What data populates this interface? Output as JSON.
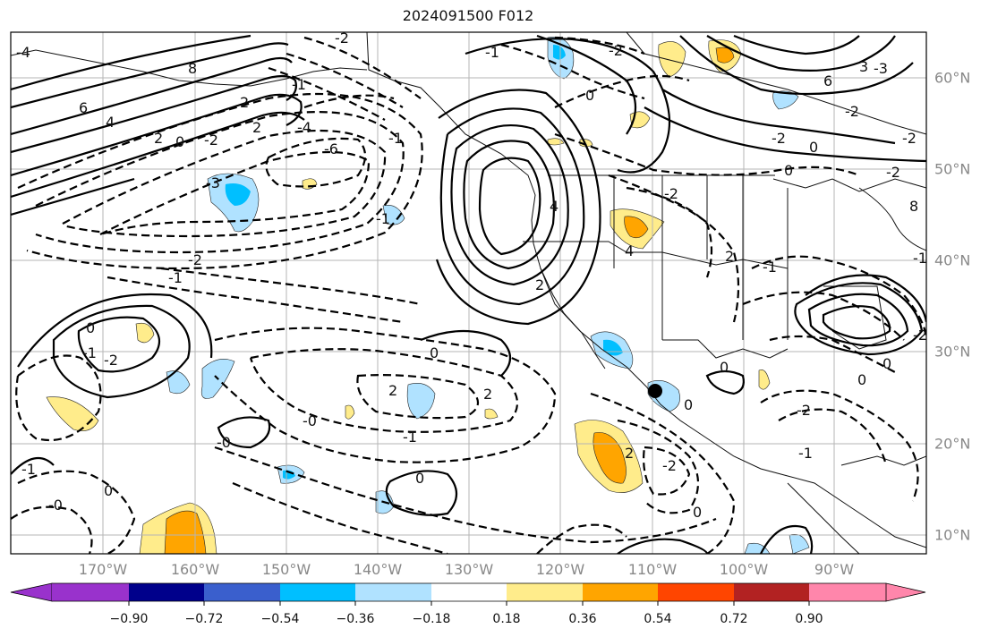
{
  "title": "2024091500 F012",
  "lon_labels": [
    "170°W",
    "160°W",
    "150°W",
    "140°W",
    "130°W",
    "120°W",
    "110°W",
    "100°W",
    "90°W"
  ],
  "lat_labels": [
    "60°N",
    "50°N",
    "40°N",
    "30°N",
    "20°N",
    "10°N"
  ],
  "colorbar": {
    "ticks": [
      "−0.90",
      "−0.72",
      "−0.54",
      "−0.36",
      "−0.18",
      "0.18",
      "0.36",
      "0.54",
      "0.72",
      "0.90"
    ],
    "colors": [
      "#9932cc",
      "#00008b",
      "#3a5fcd",
      "#00bfff",
      "#b0e2ff",
      "#ffffff",
      "#ffec8b",
      "#ffa500",
      "#ff4500",
      "#b22222",
      "#ff86ab"
    ]
  },
  "contour_labels": [
    "8",
    "6",
    "4",
    "2",
    "0",
    "-2",
    "2",
    "-4",
    "-6",
    "-3",
    "-2",
    "-1",
    "-1",
    "0",
    "-1",
    "0",
    "-1",
    "0",
    "2",
    "2",
    "-2",
    "2",
    "-2",
    "-2",
    "0",
    "-2",
    "0",
    "-2",
    "-1",
    "-0",
    "-1",
    "-0",
    "0",
    "-0",
    "-1",
    "0",
    "-2",
    "0",
    "2",
    "4",
    "4",
    "-2",
    "-2",
    "2",
    "-1",
    "-4",
    "-3",
    "-2",
    "3",
    "6",
    "8",
    "0",
    "-1",
    "2",
    "0",
    "0",
    "0",
    "-1",
    "-2",
    "-1",
    "-2"
  ]
}
